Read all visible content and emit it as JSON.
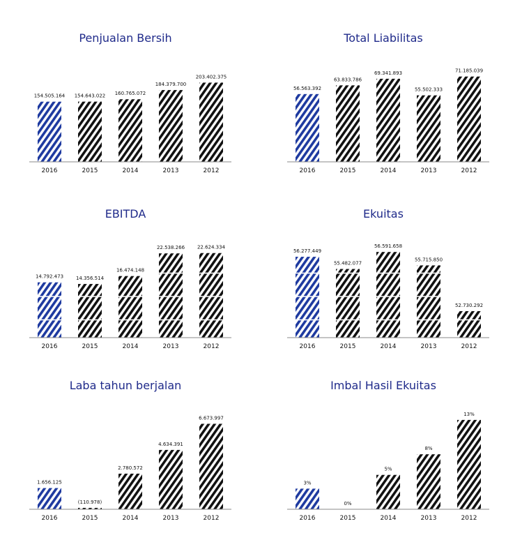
{
  "colors": {
    "title": "#1f2a8a",
    "highlight": "#1e3aa0",
    "bar": "#111111",
    "axis": "#888888"
  },
  "chart_data": [
    {
      "type": "bar",
      "title": "Penjualan Bersih",
      "categories": [
        "2016",
        "2015",
        "2014",
        "2013",
        "2012"
      ],
      "values": [
        154505164,
        154643022,
        160765072,
        184379700,
        203402375
      ],
      "value_labels": [
        "154.505.164",
        "154.643.022",
        "160.765.072",
        "184.379.700",
        "203.402.375"
      ],
      "ylim": [
        0,
        240000000
      ],
      "highlight_index": 0,
      "grid": false
    },
    {
      "type": "bar",
      "title": "Total Liabilitas",
      "categories": [
        "2016",
        "2015",
        "2014",
        "2013",
        "2012"
      ],
      "values": [
        56563392,
        63833786,
        69341893,
        55502333,
        71185039
      ],
      "value_labels": [
        "56.563.392",
        "63.833.786",
        "69.341.893",
        "55.502.333",
        "71.185.039"
      ],
      "ylim": [
        0,
        78000000
      ],
      "highlight_index": 0,
      "grid": false
    },
    {
      "type": "bar",
      "title": "EBITDA",
      "categories": [
        "2016",
        "2015",
        "2014",
        "2013",
        "2012"
      ],
      "values": [
        14792473,
        14356514,
        16474148,
        22538266,
        22624334
      ],
      "value_labels": [
        "14.792.473",
        "14.356.514",
        "16.474.148",
        "22.538.266",
        "22.624.334"
      ],
      "ylim": [
        0,
        25000000
      ],
      "highlight_index": 0,
      "grid": true
    },
    {
      "type": "bar",
      "title": "Ekuitas",
      "categories": [
        "2016",
        "2015",
        "2014",
        "2013",
        "2012"
      ],
      "values": [
        56277449,
        55482077,
        56591658,
        55715850,
        52730292
      ],
      "value_labels": [
        "56.277.449",
        "55.482.077",
        "56.591.658",
        "55.715.850",
        "52.730.292"
      ],
      "ylim": [
        51000000,
        57100000
      ],
      "highlight_index": 0,
      "grid": true
    },
    {
      "type": "bar",
      "title": "Laba tahun berjalan",
      "categories": [
        "2016",
        "2015",
        "2014",
        "2013",
        "2012"
      ],
      "values": [
        1656125,
        -110978,
        2780572,
        4634391,
        6673997
      ],
      "value_labels": [
        "1.656.125",
        "(110.978)",
        "2.780.572",
        "4.634.391",
        "6.673.997"
      ],
      "ylim": [
        0,
        7300000
      ],
      "highlight_index": 0,
      "grid": false
    },
    {
      "type": "bar",
      "title": "Imbal Hasil Ekuitas",
      "categories": [
        "2016",
        "2015",
        "2014",
        "2013",
        "2012"
      ],
      "values": [
        3,
        0,
        5,
        8,
        13
      ],
      "value_labels": [
        "3%",
        "0%",
        "5%",
        "8%",
        "13%"
      ],
      "ylim": [
        0,
        13.6
      ],
      "highlight_index": 0,
      "grid": false
    }
  ]
}
